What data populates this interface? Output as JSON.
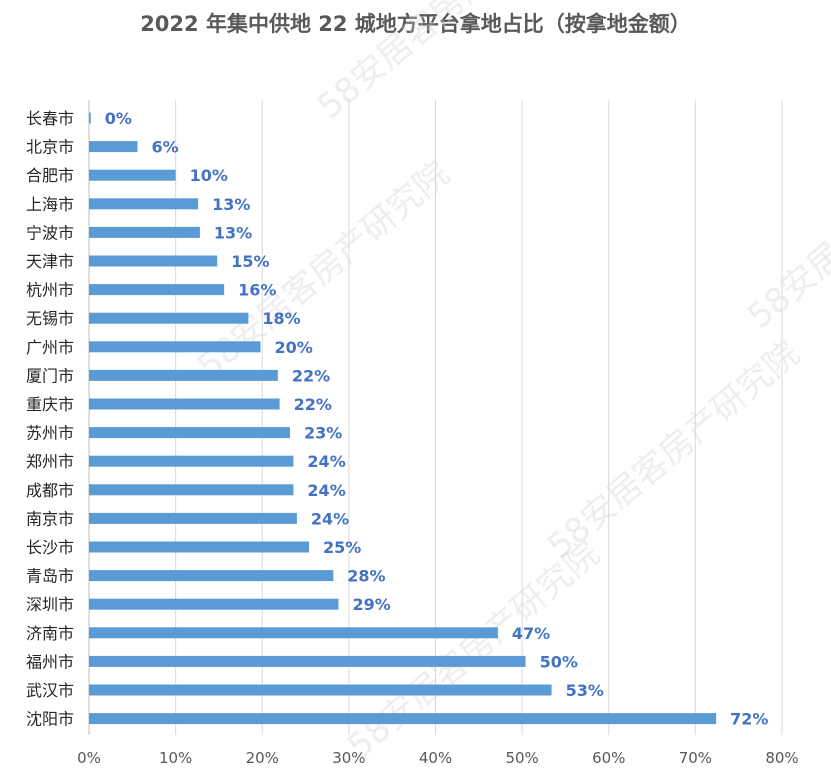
{
  "chart_data": {
    "type": "bar",
    "orientation": "horizontal",
    "title": "2022 年集中供地 22 城地方平台拿地占比（按拿地金额）",
    "categories": [
      "长春市",
      "北京市",
      "合肥市",
      "上海市",
      "宁波市",
      "天津市",
      "杭州市",
      "无锡市",
      "广州市",
      "厦门市",
      "重庆市",
      "苏州市",
      "郑州市",
      "成都市",
      "南京市",
      "长沙市",
      "青岛市",
      "深圳市",
      "济南市",
      "福州市",
      "武汉市",
      "沈阳市"
    ],
    "values": [
      0.2,
      5.6,
      10.0,
      12.6,
      12.8,
      14.8,
      15.6,
      18.4,
      19.8,
      21.8,
      22.0,
      23.2,
      23.6,
      23.6,
      24.0,
      25.4,
      28.2,
      28.8,
      47.2,
      50.4,
      53.4,
      72.4
    ],
    "data_labels": [
      "0%",
      "6%",
      "10%",
      "13%",
      "13%",
      "15%",
      "16%",
      "18%",
      "20%",
      "22%",
      "22%",
      "23%",
      "24%",
      "24%",
      "24%",
      "25%",
      "28%",
      "29%",
      "47%",
      "50%",
      "53%",
      "72%"
    ],
    "x_ticks": [
      "0%",
      "10%",
      "20%",
      "30%",
      "40%",
      "50%",
      "60%",
      "70%",
      "80%"
    ],
    "xlim": [
      0,
      80
    ],
    "grid": "vertical",
    "bar_color": "#5B9BD5",
    "label_color": "#4472C4",
    "legend": "none"
  },
  "watermark": "58安居客房产研究院"
}
